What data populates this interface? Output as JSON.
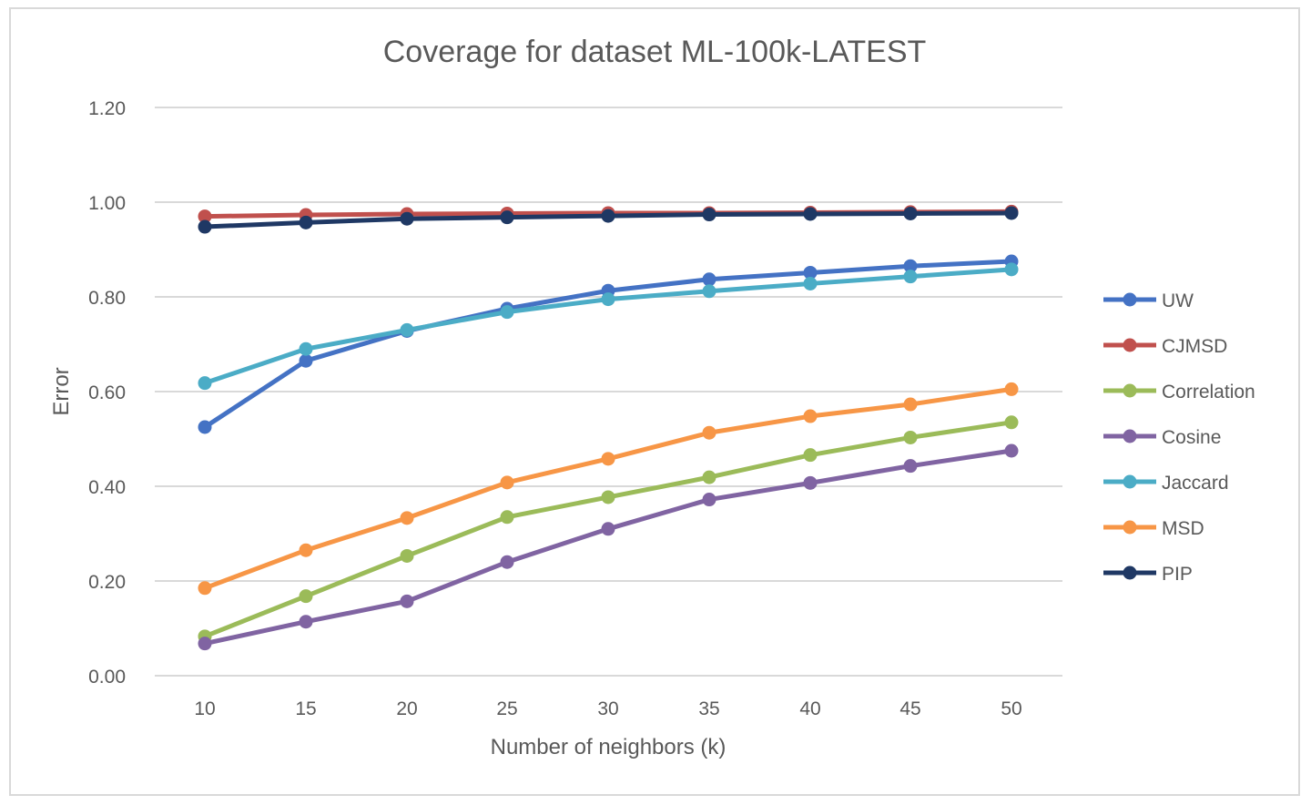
{
  "chart_data": {
    "type": "line",
    "title": "Coverage for dataset ML-100k-LATEST",
    "xlabel": "Number of neighbors (k)",
    "ylabel": "Error",
    "x": [
      10,
      15,
      20,
      25,
      30,
      35,
      40,
      45,
      50
    ],
    "x_tick_labels": [
      "10",
      "15",
      "20",
      "25",
      "30",
      "35",
      "40",
      "45",
      "50"
    ],
    "ylim": [
      0,
      1.2
    ],
    "y_ticks": [
      0,
      0.2,
      0.4,
      0.6,
      0.8,
      1.0,
      1.2
    ],
    "y_tick_labels": [
      "0.00",
      "0.20",
      "0.40",
      "0.60",
      "0.80",
      "1.00",
      "1.20"
    ],
    "grid": "horizontal",
    "legend_position": "right",
    "series": [
      {
        "name": "UW",
        "color": "#4472c4",
        "values": [
          0.525,
          0.665,
          0.728,
          0.775,
          0.813,
          0.837,
          0.851,
          0.865,
          0.875
        ]
      },
      {
        "name": "CJMSD",
        "color": "#c0504d",
        "values": [
          0.97,
          0.973,
          0.975,
          0.976,
          0.977,
          0.977,
          0.978,
          0.979,
          0.98
        ]
      },
      {
        "name": "Correlation",
        "color": "#9bbb59",
        "values": [
          0.083,
          0.168,
          0.253,
          0.335,
          0.377,
          0.419,
          0.466,
          0.503,
          0.535
        ]
      },
      {
        "name": "Cosine",
        "color": "#8064a2",
        "values": [
          0.068,
          0.114,
          0.157,
          0.24,
          0.31,
          0.372,
          0.407,
          0.443,
          0.475
        ]
      },
      {
        "name": "Jaccard",
        "color": "#4bacc6",
        "values": [
          0.618,
          0.69,
          0.73,
          0.768,
          0.795,
          0.812,
          0.828,
          0.843,
          0.858
        ]
      },
      {
        "name": "MSD",
        "color": "#f79646",
        "values": [
          0.185,
          0.265,
          0.333,
          0.408,
          0.458,
          0.513,
          0.548,
          0.573,
          0.605
        ]
      },
      {
        "name": "PIP",
        "color": "#1f3864",
        "values": [
          0.948,
          0.957,
          0.965,
          0.968,
          0.971,
          0.974,
          0.975,
          0.976,
          0.977
        ]
      }
    ]
  }
}
